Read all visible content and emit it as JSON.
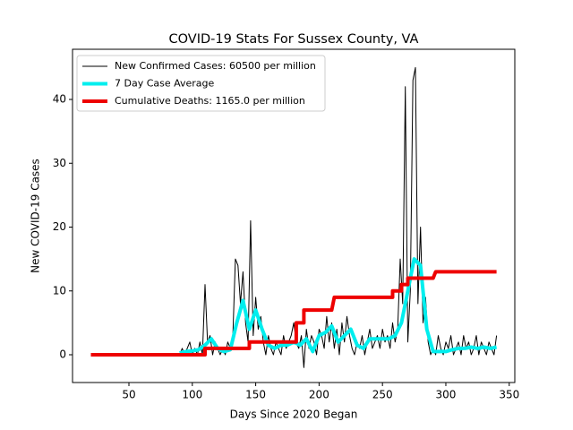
{
  "chart_data": {
    "type": "line",
    "title": "COVID-19 Stats For Sussex County, VA",
    "x_label": "Days Since 2020 Began",
    "y_label": "New COVID-19 Cases",
    "xlim": [
      5.5,
      354.4
    ],
    "xticks": [
      50,
      100,
      150,
      200,
      250,
      300,
      350
    ],
    "ylim": [
      -4.35,
      47.86
    ],
    "yticks": [
      0,
      10,
      20,
      30,
      40
    ],
    "legend": "upper left",
    "series": [
      {
        "name": "New Confirmed Cases: 60500 per million",
        "color": "#000000",
        "width": 1,
        "x": [
          90,
          92,
          94,
          96,
          98,
          100,
          102,
          104,
          106,
          108,
          110,
          112,
          114,
          116,
          118,
          120,
          122,
          124,
          126,
          128,
          130,
          132,
          134,
          136,
          138,
          140,
          142,
          144,
          146,
          148,
          150,
          152,
          154,
          156,
          158,
          160,
          162,
          164,
          166,
          168,
          170,
          172,
          174,
          176,
          178,
          180,
          182,
          184,
          186,
          188,
          190,
          192,
          194,
          196,
          198,
          200,
          202,
          204,
          206,
          208,
          210,
          212,
          214,
          216,
          218,
          220,
          222,
          224,
          226,
          228,
          230,
          232,
          234,
          236,
          238,
          240,
          242,
          244,
          246,
          248,
          250,
          252,
          254,
          256,
          258,
          260,
          262,
          264,
          266,
          268,
          270,
          272,
          274,
          276,
          278,
          280,
          282,
          284,
          286,
          288,
          290,
          292,
          294,
          296,
          298,
          300,
          302,
          304,
          306,
          308,
          310,
          312,
          314,
          316,
          318,
          320,
          322,
          324,
          326,
          328,
          330,
          332,
          334,
          336,
          338,
          340
        ],
        "values": [
          0,
          1,
          0,
          1,
          2,
          0,
          1,
          0,
          2,
          0,
          11,
          2,
          3,
          0,
          2,
          1,
          0,
          1,
          0,
          2,
          1,
          3,
          15,
          14,
          8,
          13,
          5,
          2,
          21,
          3,
          9,
          4,
          6,
          2,
          0,
          3,
          1,
          0,
          2,
          1,
          0,
          3,
          1,
          2,
          3,
          5,
          2,
          1,
          3,
          -2,
          4,
          1,
          3,
          2,
          0,
          4,
          3,
          1,
          6,
          2,
          5,
          1,
          4,
          0,
          5,
          2,
          6,
          3,
          1,
          0,
          2,
          1,
          3,
          0,
          2,
          4,
          1,
          2,
          3,
          1,
          4,
          2,
          3,
          1,
          5,
          2,
          4,
          15,
          8,
          42,
          2,
          10,
          43,
          45,
          8,
          20,
          5,
          9,
          2,
          0,
          1,
          0,
          3,
          1,
          0,
          2,
          1,
          3,
          0,
          1,
          2,
          0,
          3,
          1,
          2,
          0,
          1,
          3,
          0,
          2,
          1,
          0,
          2,
          1,
          0,
          3
        ]
      },
      {
        "name": "7 Day Case Average",
        "color": "#00eeee",
        "width": 4,
        "x": [
          90,
          95,
          100,
          105,
          110,
          115,
          120,
          125,
          130,
          135,
          140,
          145,
          150,
          155,
          160,
          165,
          170,
          175,
          180,
          185,
          190,
          195,
          200,
          205,
          210,
          215,
          220,
          225,
          230,
          235,
          240,
          245,
          250,
          255,
          260,
          265,
          270,
          275,
          280,
          285,
          290,
          295,
          300,
          305,
          310,
          315,
          320,
          325,
          330,
          335,
          340
        ],
        "values": [
          0.3,
          0.5,
          0.6,
          0.8,
          1.5,
          2.5,
          1,
          0.5,
          0.8,
          5,
          8.5,
          4,
          7,
          4,
          1.5,
          1,
          1.5,
          1.5,
          2,
          1.5,
          2.5,
          0.5,
          3,
          3.5,
          4.5,
          2,
          3,
          4,
          1.5,
          1,
          2.5,
          2.5,
          2.5,
          2.5,
          3,
          5,
          10,
          15,
          14,
          4,
          0.5,
          0.5,
          0.5,
          0.8,
          1,
          1,
          1.2,
          1,
          1.2,
          1,
          1.2
        ]
      },
      {
        "name": "Cumulative Deaths: 1165.0 per million",
        "color": "#ee0000",
        "width": 4,
        "x": [
          20,
          110,
          110,
          145,
          145,
          182,
          182,
          188,
          188,
          210,
          212,
          258,
          258,
          265,
          265,
          270,
          270,
          290,
          292,
          340
        ],
        "values": [
          0,
          0,
          1,
          1,
          2,
          2,
          5,
          5,
          7,
          7,
          9,
          9,
          10,
          10,
          11,
          11,
          12,
          12,
          13,
          13
        ]
      }
    ]
  }
}
